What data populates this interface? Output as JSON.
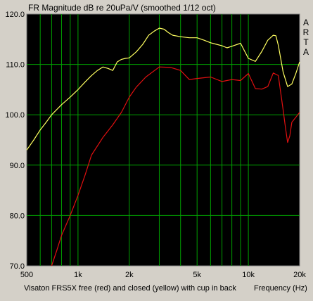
{
  "window": {
    "title": "FR Magnitude dB re 20uPa/V (smoothed 1/12 oct)",
    "caption": "Visaton FRS5X free (red) and closed (yellow) with cup in back",
    "x_unit": "Frequency (Hz)",
    "brand_letters": [
      "A",
      "R",
      "T",
      "A"
    ]
  },
  "colors": {
    "background": "#000000",
    "grid": "#00a000",
    "frame": "#d4d0c8",
    "red_series": "#e01010",
    "yellow_series": "#ffff60",
    "text": "#000000"
  },
  "chart_data": {
    "type": "line",
    "title": "FR Magnitude dB re 20uPa/V (smoothed 1/12 oct)",
    "xlabel": "Frequency (Hz)",
    "ylabel": "",
    "x_scale": "log",
    "xlim": [
      500,
      20000
    ],
    "ylim": [
      70,
      120
    ],
    "x_ticks": [
      500,
      1000,
      2000,
      5000,
      10000,
      20000
    ],
    "x_tick_labels": [
      "500",
      "1k",
      "2k",
      "5k",
      "10k",
      "20k"
    ],
    "y_ticks": [
      70,
      80,
      90,
      100,
      110,
      120
    ],
    "y_tick_labels": [
      "70.0",
      "80.0",
      "90.0",
      "100.0",
      "110.0",
      "120.0"
    ],
    "grid": true,
    "legend": "none",
    "series": [
      {
        "color": "#ffff60",
        "x": [
          500,
          550,
          600,
          650,
          700,
          800,
          900,
          1000,
          1100,
          1200,
          1300,
          1400,
          1500,
          1600,
          1700,
          1800,
          1900,
          2000,
          2200,
          2400,
          2600,
          2800,
          3000,
          3200,
          3400,
          3600,
          4000,
          4500,
          5000,
          5500,
          6000,
          6500,
          7000,
          7500,
          8000,
          9000,
          10000,
          11000,
          12000,
          13000,
          14000,
          14500,
          15000,
          16000,
          17000,
          18000,
          19000,
          20000
        ],
        "y": [
          93,
          95,
          97,
          98.5,
          100,
          102,
          103.5,
          105,
          106.5,
          107.8,
          108.8,
          109.5,
          109.2,
          108.8,
          110.5,
          111,
          111.2,
          111.3,
          112.5,
          114,
          115.8,
          116.6,
          117.2,
          117.0,
          116.3,
          115.8,
          115.5,
          115.3,
          115.3,
          114.8,
          114.3,
          114.0,
          113.7,
          113.3,
          113.6,
          114.2,
          111.2,
          110.6,
          112.6,
          114.8,
          115.8,
          115.7,
          113.8,
          108.5,
          105.6,
          106.1,
          108.2,
          110.5
        ]
      },
      {
        "color": "#e01010",
        "x": [
          700,
          750,
          800,
          900,
          1000,
          1100,
          1200,
          1400,
          1600,
          1800,
          2000,
          2200,
          2500,
          3000,
          3500,
          4000,
          4500,
          5000,
          6000,
          7000,
          8000,
          9000,
          10000,
          11000,
          12000,
          13000,
          14000,
          15000,
          16000,
          16500,
          17000,
          17500,
          18000,
          19000,
          20000
        ],
        "y": [
          70,
          73,
          76,
          80,
          84,
          88,
          92,
          95.5,
          98,
          100.5,
          103.5,
          105.5,
          107.5,
          109.5,
          109.4,
          108.8,
          107.0,
          107.2,
          107.5,
          106.6,
          107.0,
          106.8,
          108.2,
          105.2,
          105.1,
          105.6,
          108.3,
          107.8,
          101.0,
          97.5,
          94.5,
          95.8,
          98.5,
          99.5,
          100.5
        ]
      }
    ]
  }
}
